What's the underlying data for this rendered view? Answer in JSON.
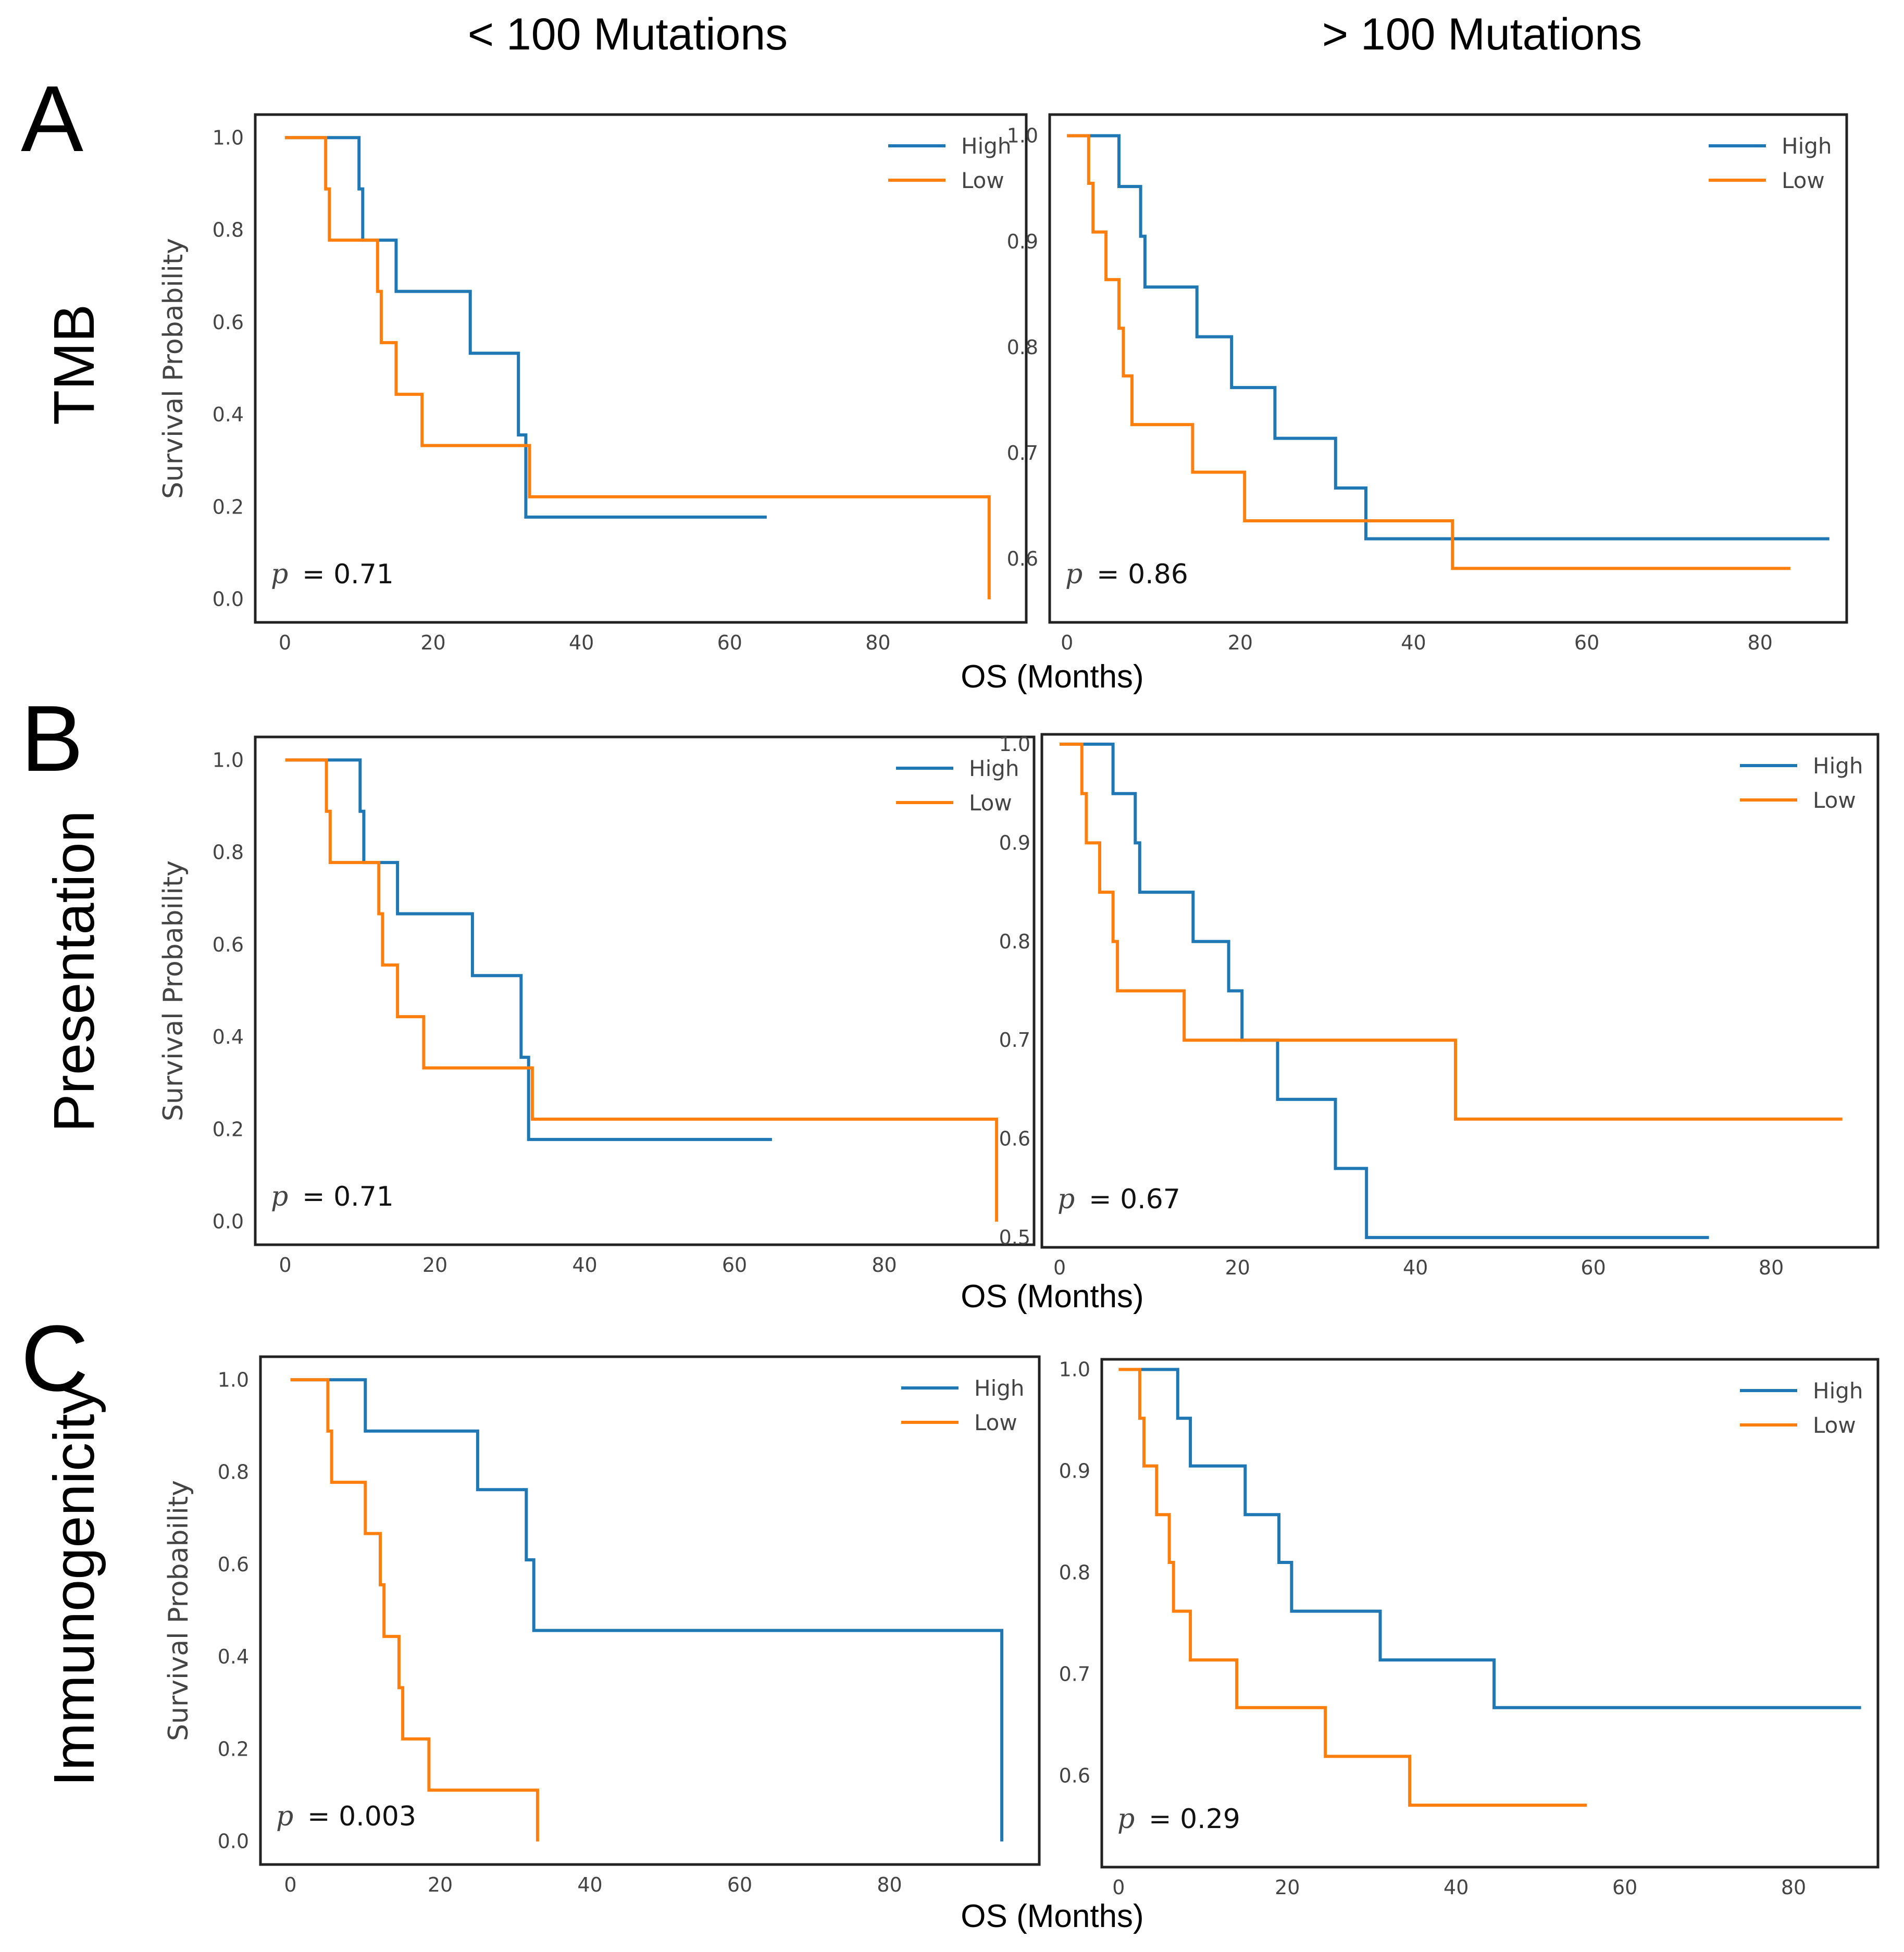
{
  "column_titles": [
    "< 100 Mutations",
    "> 100 Mutations"
  ],
  "rows": [
    {
      "letter": "A",
      "label": "TMB",
      "xlabel": "OS (Months)"
    },
    {
      "letter": "B",
      "label": "Presentation",
      "xlabel": "OS (Months)"
    },
    {
      "letter": "C",
      "label": "Immunogenicity",
      "xlabel": "OS (Months)"
    }
  ],
  "colors": {
    "High": "#1f77b4",
    "Low": "#ff7f0e"
  },
  "chart_data": [
    {
      "type": "line",
      "title": "",
      "row": "TMB",
      "column": "< 100 Mutations",
      "xlabel": "",
      "ylabel": "Survival Probability",
      "xlim": [
        -4,
        100
      ],
      "ylim": [
        -0.05,
        1.05
      ],
      "xticks": [
        0,
        20,
        40,
        60,
        80
      ],
      "yticks": [
        0.0,
        0.2,
        0.4,
        0.6,
        0.8,
        1.0
      ],
      "ytick_labels": [
        "0.0",
        "0.2",
        "0.4",
        "0.6",
        "0.8",
        "1.0"
      ],
      "p_label": "p",
      "p_value": "= 0.71",
      "series": [
        {
          "name": "High",
          "x": [
            0,
            10,
            10.5,
            12,
            15,
            25,
            31.5,
            32.5,
            65
          ],
          "y": [
            1.0,
            0.889,
            0.778,
            0.778,
            0.667,
            0.533,
            0.356,
            0.178,
            0.178
          ]
        },
        {
          "name": "Low",
          "x": [
            0,
            5.5,
            6,
            12.5,
            13,
            15,
            18.5,
            33,
            95,
            95
          ],
          "y": [
            1.0,
            0.889,
            0.778,
            0.667,
            0.556,
            0.444,
            0.333,
            0.222,
            0.222,
            0.0
          ]
        }
      ]
    },
    {
      "type": "line",
      "title": "",
      "row": "TMB",
      "column": "> 100 Mutations",
      "xlabel": "",
      "ylabel": "",
      "xlim": [
        -2,
        90
      ],
      "ylim": [
        0.54,
        1.02
      ],
      "xticks": [
        0,
        20,
        40,
        60,
        80
      ],
      "yticks": [
        0.6,
        0.7,
        0.8,
        0.9,
        1.0
      ],
      "ytick_labels": [
        "0.6",
        "0.7",
        "0.8",
        "0.9",
        "1.0"
      ],
      "p_label": "p",
      "p_value": "= 0.86",
      "series": [
        {
          "name": "High",
          "x": [
            0,
            6,
            8.5,
            9,
            15,
            19,
            24,
            31,
            34.5,
            88
          ],
          "y": [
            1.0,
            0.952,
            0.905,
            0.857,
            0.81,
            0.762,
            0.714,
            0.667,
            0.619,
            0.619
          ]
        },
        {
          "name": "Low",
          "x": [
            0,
            2.5,
            3,
            4.5,
            6,
            6.5,
            7.5,
            14.5,
            20.5,
            44.5,
            83.5
          ],
          "y": [
            1.0,
            0.955,
            0.909,
            0.864,
            0.818,
            0.773,
            0.727,
            0.682,
            0.636,
            0.591,
            0.591
          ]
        }
      ]
    },
    {
      "type": "line",
      "title": "",
      "row": "Presentation",
      "column": "< 100 Mutations",
      "xlabel": "",
      "ylabel": "Survival Probability",
      "xlim": [
        -4,
        100
      ],
      "ylim": [
        -0.05,
        1.05
      ],
      "xticks": [
        0,
        20,
        40,
        60,
        80
      ],
      "yticks": [
        0.0,
        0.2,
        0.4,
        0.6,
        0.8,
        1.0
      ],
      "ytick_labels": [
        "0.0",
        "0.2",
        "0.4",
        "0.6",
        "0.8",
        "1.0"
      ],
      "p_label": "p",
      "p_value": "= 0.71",
      "series": [
        {
          "name": "High",
          "x": [
            0,
            10,
            10.5,
            12,
            15,
            25,
            31.5,
            32.5,
            65
          ],
          "y": [
            1.0,
            0.889,
            0.778,
            0.778,
            0.667,
            0.533,
            0.356,
            0.178,
            0.178
          ]
        },
        {
          "name": "Low",
          "x": [
            0,
            5.5,
            6,
            12.5,
            13,
            15,
            18.5,
            33,
            95,
            95
          ],
          "y": [
            1.0,
            0.889,
            0.778,
            0.667,
            0.556,
            0.444,
            0.333,
            0.222,
            0.222,
            0.0
          ]
        }
      ]
    },
    {
      "type": "line",
      "title": "",
      "row": "Presentation",
      "column": "> 100 Mutations",
      "xlabel": "",
      "ylabel": "",
      "xlim": [
        -2,
        92
      ],
      "ylim": [
        0.49,
        1.01
      ],
      "xticks": [
        0,
        20,
        40,
        60,
        80
      ],
      "yticks": [
        0.5,
        0.6,
        0.7,
        0.8,
        0.9,
        1.0
      ],
      "ytick_labels": [
        "0.5",
        "0.6",
        "0.7",
        "0.8",
        "0.9",
        "1.0"
      ],
      "p_label": "p",
      "p_value": "= 0.67",
      "series": [
        {
          "name": "High",
          "x": [
            0,
            6,
            8.5,
            9,
            15,
            19,
            20.5,
            24.5,
            31,
            34.5,
            73
          ],
          "y": [
            1.0,
            0.95,
            0.9,
            0.85,
            0.8,
            0.75,
            0.7,
            0.64,
            0.57,
            0.5,
            0.5
          ]
        },
        {
          "name": "Low",
          "x": [
            0,
            2.5,
            3,
            4.5,
            6,
            6.5,
            7.5,
            14,
            44.5,
            88
          ],
          "y": [
            1.0,
            0.95,
            0.9,
            0.85,
            0.8,
            0.75,
            0.75,
            0.7,
            0.62,
            0.62
          ]
        }
      ]
    },
    {
      "type": "line",
      "title": "",
      "row": "Immunogenicity",
      "column": "< 100 Mutations",
      "xlabel": "",
      "ylabel": "Survival Probability",
      "xlim": [
        -4,
        100
      ],
      "ylim": [
        -0.05,
        1.05
      ],
      "xticks": [
        0,
        20,
        40,
        60,
        80
      ],
      "yticks": [
        0.0,
        0.2,
        0.4,
        0.6,
        0.8,
        1.0
      ],
      "ytick_labels": [
        "0.0",
        "0.2",
        "0.4",
        "0.6",
        "0.8",
        "1.0"
      ],
      "p_label": "p",
      "p_value": "= 0.003",
      "series": [
        {
          "name": "High",
          "x": [
            0,
            10,
            25,
            31.5,
            32.5,
            95,
            95
          ],
          "y": [
            1.0,
            0.889,
            0.762,
            0.61,
            0.457,
            0.457,
            0.0
          ]
        },
        {
          "name": "Low",
          "x": [
            0,
            5,
            5.5,
            10,
            12,
            12.5,
            13,
            14.5,
            15,
            18.5,
            33,
            33
          ],
          "y": [
            1.0,
            0.889,
            0.778,
            0.667,
            0.556,
            0.444,
            0.444,
            0.333,
            0.222,
            0.111,
            0.111,
            0.0
          ]
        }
      ]
    },
    {
      "type": "line",
      "title": "",
      "row": "Immunogenicity",
      "column": "> 100 Mutations",
      "xlabel": "",
      "ylabel": "",
      "xlim": [
        -2,
        90
      ],
      "ylim": [
        0.51,
        1.01
      ],
      "xticks": [
        0,
        20,
        40,
        60,
        80
      ],
      "yticks": [
        0.6,
        0.7,
        0.8,
        0.9,
        1.0
      ],
      "ytick_labels": [
        "0.6",
        "0.7",
        "0.8",
        "0.9",
        "1.0"
      ],
      "p_label": "p",
      "p_value": "= 0.29",
      "series": [
        {
          "name": "High",
          "x": [
            0,
            7,
            8.5,
            15,
            19,
            20.5,
            31,
            44.5,
            88
          ],
          "y": [
            1.0,
            0.952,
            0.905,
            0.857,
            0.81,
            0.762,
            0.714,
            0.667,
            0.667
          ]
        },
        {
          "name": "Low",
          "x": [
            0,
            2.5,
            3,
            4.5,
            6,
            6.5,
            8.5,
            14,
            24.5,
            34.5,
            55.5
          ],
          "y": [
            1.0,
            0.952,
            0.905,
            0.857,
            0.81,
            0.762,
            0.714,
            0.667,
            0.619,
            0.571,
            0.571
          ]
        }
      ]
    }
  ]
}
